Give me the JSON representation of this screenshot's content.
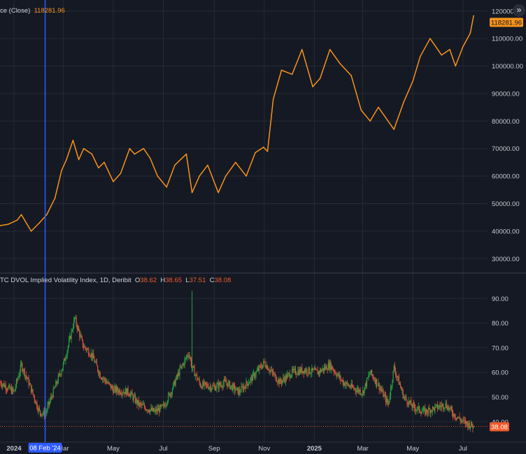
{
  "colors": {
    "background": "#151924",
    "grid": "#252a36",
    "price_line": "#f7931a",
    "candle_up": "#26a23f",
    "candle_down": "#e0553a",
    "crosshair": "#2f5bff",
    "axis_text": "#c7c9cf",
    "last_dvol_badge": "#f05a2a"
  },
  "icons": {
    "expand": "double-chevron-right-icon"
  },
  "expand_glyph": "»",
  "top_pane": {
    "legend_label": "ce (Close)",
    "legend_value": "118281.96",
    "last_value_badge": "118281.96"
  },
  "bottom_pane": {
    "legend_label": "TC DVOL Implied Volatility Index, 1D, Deribit",
    "o_label": "O",
    "o_value": "38.62",
    "h_label": "H",
    "h_value": "38.65",
    "l_label": "L",
    "l_value": "37.51",
    "c_label": "C",
    "c_value": "38.08",
    "last_value_badge": "38.08"
  },
  "crosshair_date": "08 Feb '24",
  "chart_data": [
    {
      "type": "line",
      "series": [
        {
          "x": [
            "2023-12-15",
            "2023-12-25",
            "2024-01-05",
            "2024-01-10",
            "2024-01-22",
            "2024-02-01",
            "2024-02-10",
            "2024-02-20",
            "2024-02-28",
            "2024-03-05",
            "2024-03-13",
            "2024-03-20",
            "2024-03-26",
            "2024-04-05",
            "2024-04-13",
            "2024-04-20",
            "2024-05-01",
            "2024-05-10",
            "2024-05-21",
            "2024-05-27",
            "2024-06-07",
            "2024-06-15",
            "2024-06-24",
            "2024-07-05",
            "2024-07-15",
            "2024-07-29",
            "2024-08-05",
            "2024-08-14",
            "2024-08-24",
            "2024-09-06",
            "2024-09-15",
            "2024-09-27",
            "2024-10-10",
            "2024-10-21",
            "2024-10-31",
            "2024-11-05",
            "2024-11-12",
            "2024-11-22",
            "2024-12-05",
            "2024-12-17",
            "2024-12-30",
            "2025-01-08",
            "2025-01-20",
            "2025-02-01",
            "2025-02-15",
            "2025-02-27",
            "2025-03-10",
            "2025-03-20",
            "2025-04-08",
            "2025-04-20",
            "2025-05-01",
            "2025-05-10",
            "2025-05-22",
            "2025-06-05",
            "2025-06-15",
            "2025-06-22",
            "2025-07-01",
            "2025-07-10",
            "2025-07-14"
          ],
          "values": [
            42000,
            42500,
            44000,
            46000,
            40000,
            43000,
            46000,
            52000,
            62000,
            66000,
            73000,
            66000,
            70000,
            68000,
            63000,
            65000,
            58000,
            61000,
            70000,
            68000,
            70000,
            66500,
            60000,
            56000,
            64000,
            68000,
            54000,
            60000,
            64000,
            54000,
            60000,
            65000,
            60000,
            68500,
            70500,
            69000,
            88000,
            98500,
            97000,
            106000,
            92500,
            95500,
            106000,
            101000,
            96500,
            84000,
            80000,
            85000,
            77000,
            87000,
            94500,
            103500,
            110000,
            104000,
            106000,
            100000,
            107000,
            112000,
            118281.96
          ]
        }
      ],
      "xlim": [
        "2023-12-15",
        "2025-07-31"
      ],
      "ylim": [
        25000,
        124000
      ],
      "yticks": [
        30000,
        40000,
        50000,
        60000,
        70000,
        80000,
        90000,
        100000,
        110000,
        120000
      ],
      "yticklabels": [
        "30000.00",
        "40000.00",
        "50000.00",
        "60000.00",
        "70000.00",
        "80000.00",
        "90000.00",
        "100000.00",
        "110000.00",
        "120000.00"
      ],
      "grid": true
    },
    {
      "type": "candlestick",
      "series": [
        {
          "x": [
            "2023-12-15",
            "2024-01-01",
            "2024-01-10",
            "2024-01-20",
            "2024-02-01",
            "2024-02-08",
            "2024-02-20",
            "2024-03-01",
            "2024-03-08",
            "2024-03-15",
            "2024-03-25",
            "2024-04-05",
            "2024-04-15",
            "2024-05-01",
            "2024-05-20",
            "2024-06-01",
            "2024-06-20",
            "2024-07-01",
            "2024-07-10",
            "2024-07-20",
            "2024-08-01",
            "2024-08-05",
            "2024-08-15",
            "2024-09-01",
            "2024-09-15",
            "2024-10-01",
            "2024-10-15",
            "2024-11-01",
            "2024-11-10",
            "2024-11-20",
            "2024-12-05",
            "2024-12-20",
            "2025-01-05",
            "2025-01-20",
            "2025-02-05",
            "2025-02-15",
            "2025-03-01",
            "2025-03-10",
            "2025-03-20",
            "2025-04-01",
            "2025-04-08",
            "2025-04-20",
            "2025-05-01",
            "2025-05-15",
            "2025-06-01",
            "2025-06-10",
            "2025-06-20",
            "2025-07-01",
            "2025-07-14"
          ],
          "values": [
            56,
            52,
            63,
            55,
            44,
            43,
            54,
            63,
            72,
            82,
            71,
            67,
            59,
            53,
            52,
            47,
            44,
            46,
            52,
            60,
            68,
            62,
            55,
            54,
            56,
            52,
            57,
            64,
            60,
            56,
            60,
            61,
            60,
            63,
            56,
            54,
            52,
            60,
            55,
            47,
            62,
            50,
            46,
            44,
            46,
            47,
            43,
            40,
            38.08
          ]
        }
      ],
      "last_ohlc": {
        "open": 38.62,
        "high": 38.65,
        "low": 37.51,
        "close": 38.08
      },
      "ylim": [
        32,
        100
      ],
      "yticks": [
        40,
        50,
        60,
        70,
        80,
        90
      ],
      "yticklabels": [
        "40.00",
        "50.00",
        "60.00",
        "70.00",
        "80.00",
        "90.00"
      ],
      "grid": true
    }
  ],
  "x_axis": {
    "ticks": [
      "2024-01-01",
      "2024-03-01",
      "2024-05-01",
      "2024-07-01",
      "2024-09-01",
      "2024-11-01",
      "2025-01-01",
      "2025-03-01",
      "2025-05-01",
      "2025-07-01"
    ],
    "labels": [
      "2024",
      "Mar",
      "May",
      "Jul",
      "Sep",
      "Nov",
      "2025",
      "Mar",
      "May",
      "Jul"
    ],
    "bold": [
      true,
      false,
      false,
      false,
      false,
      false,
      true,
      false,
      false,
      false
    ]
  }
}
